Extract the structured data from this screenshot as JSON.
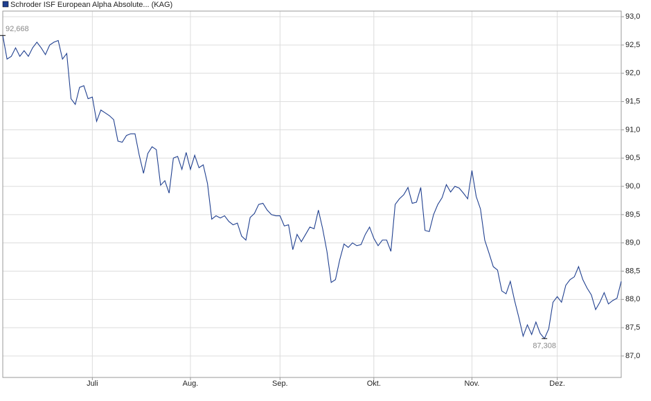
{
  "chart_data": {
    "type": "line",
    "categories": [
      null,
      null,
      null,
      null,
      null,
      null,
      null,
      null,
      null,
      null,
      null,
      null,
      null,
      null,
      null,
      null,
      null,
      null,
      null,
      null,
      null,
      "Juli",
      null,
      null,
      null,
      null,
      null,
      null,
      null,
      null,
      null,
      null,
      null,
      null,
      null,
      null,
      null,
      null,
      null,
      null,
      null,
      null,
      null,
      null,
      "Aug.",
      null,
      null,
      null,
      null,
      null,
      null,
      null,
      null,
      null,
      null,
      null,
      null,
      null,
      null,
      null,
      null,
      null,
      null,
      null,
      null,
      "Sep.",
      null,
      null,
      null,
      null,
      null,
      null,
      null,
      null,
      null,
      null,
      null,
      null,
      null,
      null,
      null,
      null,
      null,
      null,
      null,
      null,
      null,
      "Okt.",
      null,
      null,
      null,
      null,
      null,
      null,
      null,
      null,
      null,
      null,
      null,
      null,
      null,
      null,
      null,
      null,
      null,
      null,
      null,
      null,
      null,
      null,
      "Nov.",
      null,
      null,
      null,
      null,
      null,
      null,
      null,
      null,
      null,
      null,
      null,
      null,
      null,
      null,
      null,
      null,
      null,
      null,
      null,
      "Dez.",
      null,
      null,
      null,
      null,
      null,
      null,
      null,
      null,
      null,
      null,
      null,
      null,
      null,
      null,
      null
    ],
    "series": [
      {
        "name": "Schroder ISF European Alpha Absolute... (KAG)",
        "color": "#1f3f8f",
        "values": [
          92.668,
          92.25,
          92.3,
          92.45,
          92.3,
          92.4,
          92.3,
          92.45,
          92.55,
          92.45,
          92.33,
          92.5,
          92.55,
          92.58,
          92.25,
          92.35,
          91.55,
          91.45,
          91.75,
          91.78,
          91.55,
          91.58,
          91.15,
          91.35,
          91.3,
          91.25,
          91.18,
          90.8,
          90.78,
          90.9,
          90.93,
          90.93,
          90.55,
          90.23,
          90.58,
          90.7,
          90.65,
          90.02,
          90.1,
          89.88,
          90.5,
          90.53,
          90.3,
          90.6,
          90.3,
          90.55,
          90.33,
          90.38,
          90.05,
          89.42,
          89.48,
          89.44,
          89.48,
          89.38,
          89.32,
          89.35,
          89.12,
          89.05,
          89.45,
          89.52,
          89.68,
          89.7,
          89.58,
          89.5,
          89.48,
          89.48,
          89.3,
          89.32,
          88.88,
          89.15,
          89.02,
          89.15,
          89.28,
          89.25,
          89.58,
          89.25,
          88.85,
          88.3,
          88.35,
          88.7,
          88.98,
          88.92,
          89.0,
          88.95,
          88.97,
          89.15,
          89.28,
          89.08,
          88.95,
          89.05,
          89.05,
          88.85,
          89.68,
          89.78,
          89.85,
          89.98,
          89.7,
          89.72,
          89.98,
          89.22,
          89.2,
          89.5,
          89.68,
          89.8,
          90.03,
          89.9,
          90.0,
          89.97,
          89.88,
          89.78,
          90.28,
          89.82,
          89.6,
          89.05,
          88.82,
          88.58,
          88.52,
          88.15,
          88.1,
          88.32,
          87.98,
          87.68,
          87.35,
          87.55,
          87.38,
          87.6,
          87.4,
          87.308,
          87.48,
          87.95,
          88.05,
          87.95,
          88.25,
          88.35,
          88.4,
          88.58,
          88.35,
          88.2,
          88.08,
          87.82,
          87.95,
          88.12,
          87.92,
          87.98,
          88.02,
          88.32
        ],
        "value_labels": [
          "92,668",
          null,
          null,
          null,
          null,
          null,
          null,
          null,
          null,
          null,
          null,
          null,
          null,
          null,
          null,
          null,
          null,
          null,
          null,
          null,
          null,
          null,
          null,
          null,
          null,
          null,
          null,
          null,
          null,
          null,
          null,
          null,
          null,
          null,
          null,
          null,
          null,
          null,
          null,
          null,
          null,
          null,
          null,
          null,
          null,
          null,
          null,
          null,
          null,
          null,
          null,
          null,
          null,
          null,
          null,
          null,
          null,
          null,
          null,
          null,
          null,
          null,
          null,
          null,
          null,
          null,
          null,
          null,
          null,
          null,
          null,
          null,
          null,
          null,
          null,
          null,
          null,
          null,
          null,
          null,
          null,
          null,
          null,
          null,
          null,
          null,
          null,
          null,
          null,
          null,
          null,
          null,
          null,
          null,
          null,
          null,
          null,
          null,
          null,
          null,
          null,
          null,
          null,
          null,
          null,
          null,
          null,
          null,
          null,
          null,
          null,
          null,
          null,
          null,
          null,
          null,
          null,
          null,
          null,
          null,
          null,
          null,
          null,
          null,
          null,
          null,
          null,
          "87,308",
          null,
          null,
          null,
          null,
          null,
          null,
          null,
          null,
          null,
          null,
          null,
          null,
          null,
          null,
          null,
          null,
          null,
          null
        ]
      }
    ],
    "ylim": [
      86.62,
      93.1
    ],
    "yticks": [
      {
        "value": 87.0,
        "label": "87,0"
      },
      {
        "value": 87.5,
        "label": "87,5"
      },
      {
        "value": 88.0,
        "label": "88,0"
      },
      {
        "value": 88.5,
        "label": "88,5"
      },
      {
        "value": 89.0,
        "label": "89,0"
      },
      {
        "value": 89.5,
        "label": "89,5"
      },
      {
        "value": 90.0,
        "label": "90,0"
      },
      {
        "value": 90.5,
        "label": "90,5"
      },
      {
        "value": 91.0,
        "label": "91,0"
      },
      {
        "value": 91.5,
        "label": "91,5"
      },
      {
        "value": 92.0,
        "label": "92,0"
      },
      {
        "value": 92.5,
        "label": "92,5"
      },
      {
        "value": 93.0,
        "label": "93,0"
      }
    ],
    "grid": true
  }
}
